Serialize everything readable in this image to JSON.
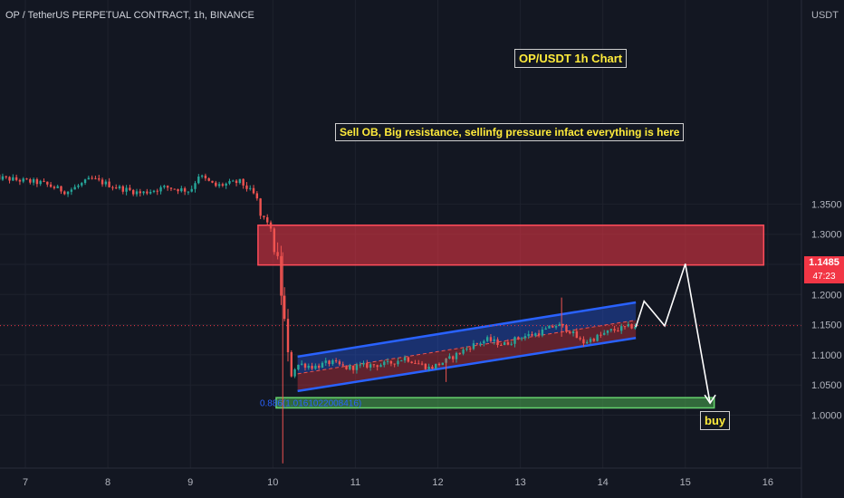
{
  "header": {
    "symbol_title": "OP / TetherUS PERPETUAL CONTRACT, 1h, BINANCE"
  },
  "chart_data": {
    "type": "candlestick",
    "title": "OP/USDT 1h Chart",
    "currency_label": "USDT",
    "x_ticks": [
      "7",
      "8",
      "9",
      "10",
      "11",
      "12",
      "13",
      "14",
      "15",
      "16"
    ],
    "y_ticks": [
      "1.3500",
      "1.3000",
      "1.2500",
      "1.2000",
      "1.1500",
      "1.1000",
      "1.0500",
      "1.0000"
    ],
    "y_range": [
      0.96,
      1.41
    ],
    "current_price": "1.1485",
    "countdown": "47:23",
    "fib_label": "0.886(1.0161022008416)",
    "annotations": {
      "resistance_text": "Sell OB, Big resistance, sellinfg pressure infact everything is here",
      "buy_text": "buy"
    },
    "zones": {
      "resistance": {
        "top": 1.315,
        "bottom": 1.249,
        "from_day": 9.82,
        "to_day": 15.95,
        "color": "#f23645"
      },
      "support": {
        "top": 1.029,
        "bottom": 1.012,
        "from_day": 10.04,
        "to_day": 15.35,
        "color": "#4caf50"
      }
    },
    "channel": {
      "upper": {
        "from": [
          10.3,
          1.097
        ],
        "to": [
          14.4,
          1.187
        ]
      },
      "lower": {
        "from": [
          10.3,
          1.04
        ],
        "to": [
          14.4,
          1.128
        ]
      },
      "color": "#2962ff"
    },
    "projection_path": [
      [
        14.4,
        1.146
      ],
      [
        14.5,
        1.189
      ],
      [
        14.75,
        1.148
      ],
      [
        15.0,
        1.251
      ],
      [
        15.3,
        1.02
      ]
    ],
    "colors": {
      "up": "#26a69a",
      "down": "#ef5350",
      "bg": "#131722",
      "grid": "#1e222d"
    },
    "candle_anchors": [
      [
        6.6,
        1.395
      ],
      [
        6.9,
        1.39
      ],
      [
        7.2,
        1.385
      ],
      [
        7.5,
        1.37
      ],
      [
        7.8,
        1.392
      ],
      [
        8.1,
        1.378
      ],
      [
        8.4,
        1.368
      ],
      [
        8.7,
        1.378
      ],
      [
        9.0,
        1.372
      ],
      [
        9.1,
        1.398
      ],
      [
        9.3,
        1.38
      ],
      [
        9.6,
        1.387
      ],
      [
        9.7,
        1.375
      ],
      [
        9.8,
        1.362
      ],
      [
        9.85,
        1.33
      ],
      [
        9.95,
        1.32
      ],
      [
        10.05,
        1.26
      ],
      [
        10.13,
        1.17
      ],
      [
        10.2,
        1.07
      ],
      [
        10.32,
        1.085
      ],
      [
        10.5,
        1.08
      ],
      [
        10.7,
        1.088
      ],
      [
        10.9,
        1.078
      ],
      [
        11.1,
        1.082
      ],
      [
        11.4,
        1.085
      ],
      [
        11.6,
        1.095
      ],
      [
        11.9,
        1.078
      ],
      [
        12.1,
        1.09
      ],
      [
        12.4,
        1.115
      ],
      [
        12.6,
        1.125
      ],
      [
        12.8,
        1.117
      ],
      [
        13.0,
        1.13
      ],
      [
        13.2,
        1.135
      ],
      [
        13.45,
        1.15
      ],
      [
        13.6,
        1.14
      ],
      [
        13.75,
        1.12
      ],
      [
        13.9,
        1.128
      ],
      [
        14.1,
        1.14
      ],
      [
        14.3,
        1.146
      ],
      [
        14.4,
        1.148
      ]
    ]
  }
}
